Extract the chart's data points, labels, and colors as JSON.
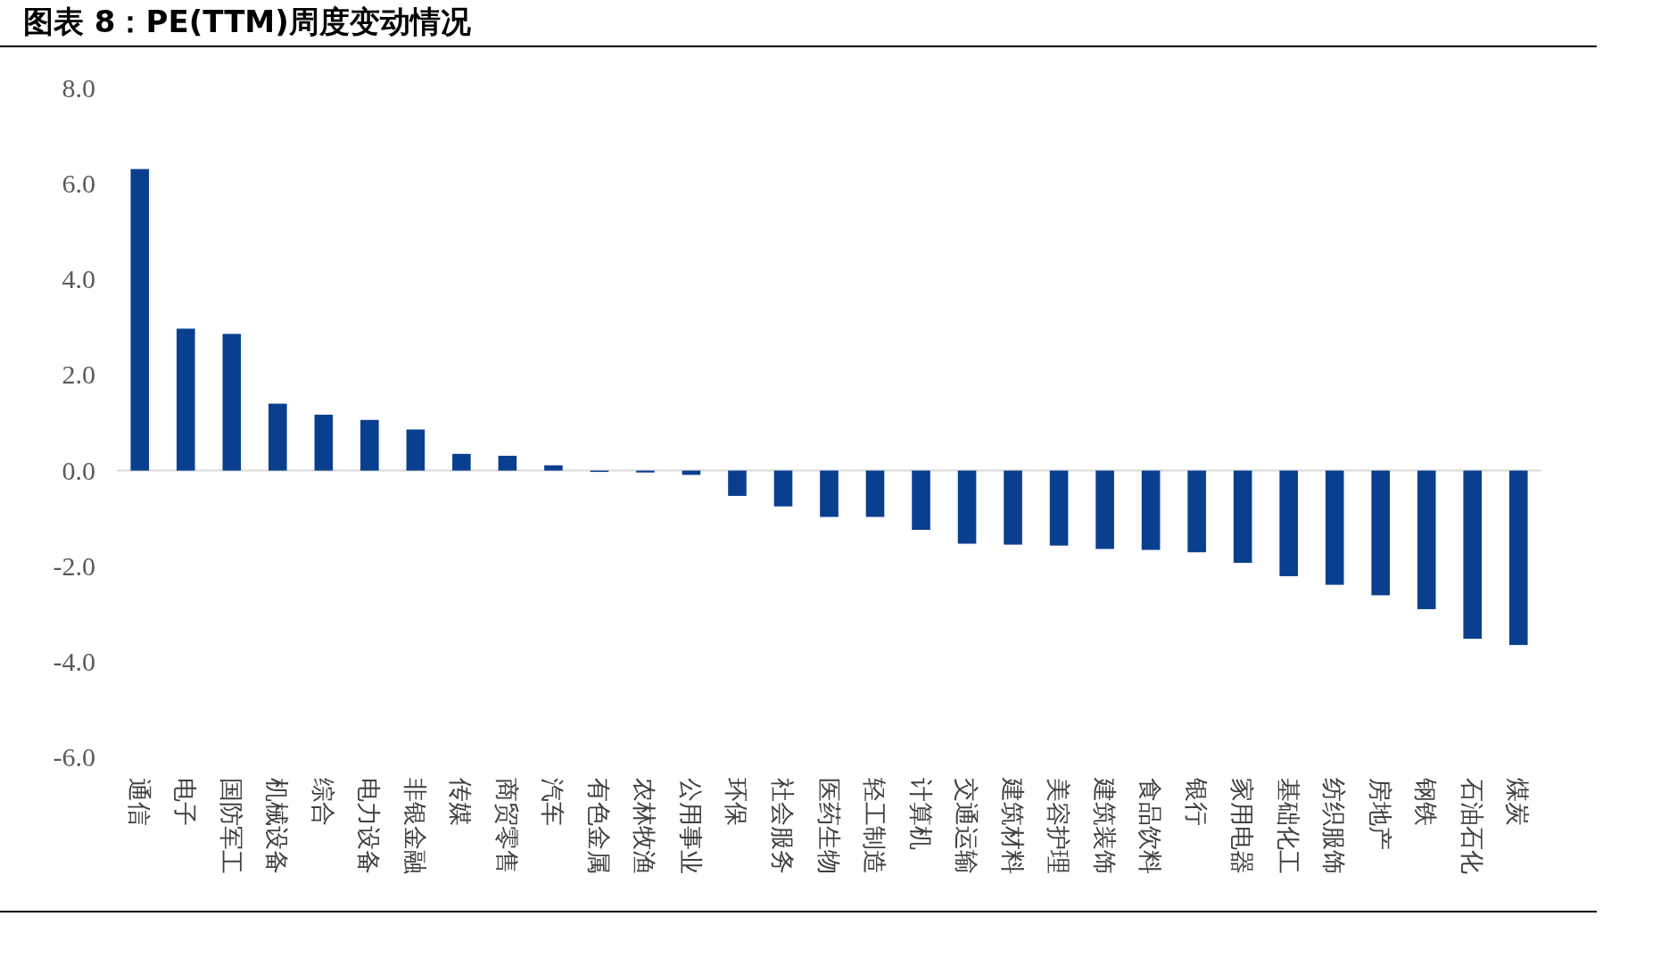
{
  "chart_data": {
    "type": "bar",
    "title": "图表 8：PE(TTM)周度变动情况",
    "categories": [
      "通信",
      "电子",
      "国防军工",
      "机械设备",
      "综合",
      "电力设备",
      "非银金融",
      "传媒",
      "商贸零售",
      "汽车",
      "有色金属",
      "农林牧渔",
      "公用事业",
      "环保",
      "社会服务",
      "医药生物",
      "轻工制造",
      "计算机",
      "交通运输",
      "建筑材料",
      "美容护理",
      "建筑装饰",
      "食品饮料",
      "银行",
      "家用电器",
      "基础化工",
      "纺织服饰",
      "房地产",
      "钢铁",
      "石油石化",
      "煤炭"
    ],
    "values": [
      6.31,
      2.97,
      2.86,
      1.4,
      1.17,
      1.06,
      0.86,
      0.35,
      0.31,
      0.11,
      -0.02,
      -0.04,
      -0.09,
      -0.53,
      -0.75,
      -0.97,
      -0.97,
      -1.24,
      -1.53,
      -1.55,
      -1.57,
      -1.64,
      -1.66,
      -1.71,
      -1.93,
      -2.21,
      -2.39,
      -2.61,
      -2.9,
      -3.52,
      -3.65
    ],
    "color": "#0a3f8f",
    "ylim": [
      -6,
      8
    ],
    "yticks": [
      {
        "value": -6,
        "label": "-6.0"
      },
      {
        "value": -4,
        "label": "-4.0"
      },
      {
        "value": -2,
        "label": "-2.0"
      },
      {
        "value": 0,
        "label": "0.0"
      },
      {
        "value": 2,
        "label": "2.0"
      },
      {
        "value": 4,
        "label": "4.0"
      },
      {
        "value": 6,
        "label": "6.0"
      },
      {
        "value": 8,
        "label": "8.0"
      }
    ]
  }
}
